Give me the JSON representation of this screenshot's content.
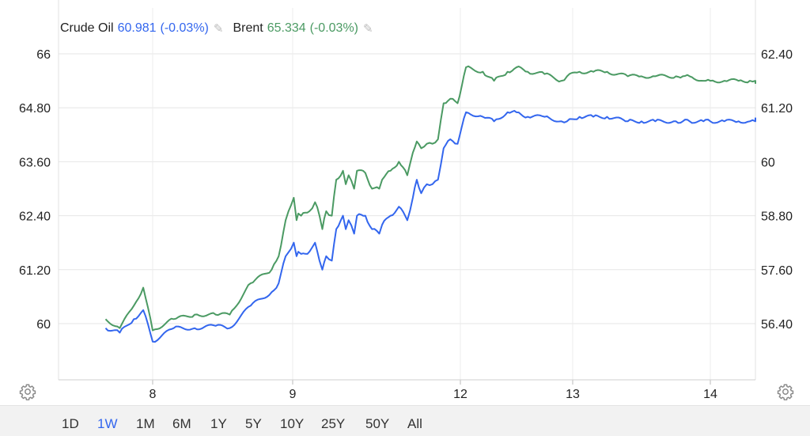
{
  "legend": [
    {
      "name": "Crude Oil",
      "value": "60.981",
      "change": "(-0.03%)",
      "color": "#3366ee"
    },
    {
      "name": "Brent",
      "value": "65.334",
      "change": "(-0.03%)",
      "color": "#4b9a63"
    }
  ],
  "ranges": [
    "1D",
    "1W",
    "1M",
    "6M",
    "1Y",
    "5Y",
    "10Y",
    "25Y",
    "50Y",
    "All"
  ],
  "active_range": "1W",
  "chart_data": {
    "type": "line",
    "x_ticks": [
      "8",
      "9",
      "12",
      "13",
      "14"
    ],
    "y_left": {
      "ticks": [
        "60",
        "61.20",
        "62.40",
        "63.60",
        "64.80",
        "66"
      ],
      "min": 59,
      "max": 66.6
    },
    "y_right": {
      "ticks": [
        "56.40",
        "57.60",
        "58.80",
        "60",
        "61.20",
        "62.40"
      ],
      "min": 55.4,
      "max": 63
    },
    "grid": true,
    "series": [
      {
        "name": "Brent",
        "axis": "left",
        "color": "#4b9a63",
        "x": [
          7.5,
          7.65,
          7.8,
          7.9,
          8.0,
          8.15,
          8.3,
          8.45,
          8.55,
          8.7,
          8.85,
          8.9,
          8.95,
          9.02,
          9.07,
          9.1,
          9.15,
          9.3,
          9.4,
          9.48,
          9.53,
          9.6,
          9.7,
          9.78,
          9.9,
          9.95,
          10.0,
          10.1,
          10.15,
          10.3,
          10.42,
          10.55,
          10.6,
          10.75,
          10.9,
          11.05,
          11.15,
          11.22,
          11.3,
          11.4,
          11.5,
          11.6,
          11.7,
          11.82,
          11.95,
          12.05,
          12.2,
          12.3,
          12.42,
          12.5,
          12.6,
          12.75,
          12.9,
          12.95,
          13.05,
          13.15,
          13.25,
          13.4,
          13.5,
          13.6,
          13.75,
          13.8,
          13.85,
          13.95,
          14.0,
          14.1,
          14.2,
          14.28,
          14.35,
          14.45,
          14.55,
          14.65
        ],
        "values": [
          60.1,
          59.9,
          60.4,
          60.8,
          59.85,
          60.1,
          60.2,
          60.2,
          60.2,
          60.9,
          61.2,
          61.5,
          62.3,
          62.8,
          62.3,
          62.45,
          62.4,
          62.5,
          62.7,
          62.4,
          62.1,
          62.5,
          62.4,
          63.2,
          63.4,
          63.1,
          63.3,
          63.0,
          63.4,
          63.35,
          63.0,
          63.0,
          63.2,
          63.4,
          63.6,
          63.3,
          63.8,
          64.05,
          63.9,
          64.0,
          64.0,
          64.1,
          64.9,
          65.0,
          64.9,
          65.7,
          65.6,
          65.4,
          65.6,
          65.7,
          65.6,
          65.55,
          65.4,
          65.5,
          65.6,
          65.6,
          65.6,
          65.5,
          65.5,
          65.5,
          65.5,
          65.5,
          65.5,
          65.4,
          65.4,
          65.4,
          65.4,
          65.4,
          65.4,
          65.4,
          65.334,
          65.334
        ]
      },
      {
        "name": "Crude Oil",
        "axis": "right",
        "color": "#3366ee",
        "x": [
          7.5,
          7.65,
          7.8,
          7.9,
          8.0,
          8.15,
          8.3,
          8.45,
          8.55,
          8.7,
          8.85,
          8.9,
          8.95,
          9.02,
          9.07,
          9.1,
          9.15,
          9.3,
          9.4,
          9.48,
          9.53,
          9.6,
          9.7,
          9.78,
          9.9,
          9.95,
          10.0,
          10.1,
          10.15,
          10.3,
          10.42,
          10.55,
          10.6,
          10.75,
          10.9,
          11.05,
          11.15,
          11.22,
          11.3,
          11.4,
          11.5,
          11.6,
          11.7,
          11.82,
          11.95,
          12.05,
          12.2,
          12.3,
          12.42,
          12.5,
          12.6,
          12.75,
          12.9,
          12.95,
          13.05,
          13.15,
          13.25,
          13.4,
          13.5,
          13.6,
          13.75,
          13.8,
          13.85,
          13.95,
          14.0,
          14.1,
          14.2,
          14.28,
          14.35,
          14.45,
          14.55,
          14.65
        ],
        "values": [
          56.3,
          56.2,
          56.5,
          56.7,
          56.0,
          56.3,
          56.3,
          56.35,
          56.3,
          56.8,
          57.1,
          57.3,
          57.9,
          58.2,
          57.9,
          58.0,
          57.95,
          58.0,
          58.2,
          57.8,
          57.6,
          57.9,
          57.8,
          58.5,
          58.8,
          58.5,
          58.7,
          58.4,
          58.8,
          58.8,
          58.5,
          58.4,
          58.6,
          58.8,
          59.0,
          58.7,
          59.2,
          59.6,
          59.3,
          59.5,
          59.5,
          59.6,
          60.3,
          60.5,
          60.4,
          61.1,
          61.0,
          60.9,
          61.1,
          61.1,
          61.0,
          61.0,
          60.9,
          60.9,
          61.0,
          61.0,
          61.0,
          60.9,
          60.9,
          60.9,
          60.9,
          60.9,
          60.9,
          60.9,
          60.9,
          60.9,
          60.9,
          60.9,
          60.9,
          60.9,
          60.981,
          60.981
        ]
      }
    ]
  }
}
